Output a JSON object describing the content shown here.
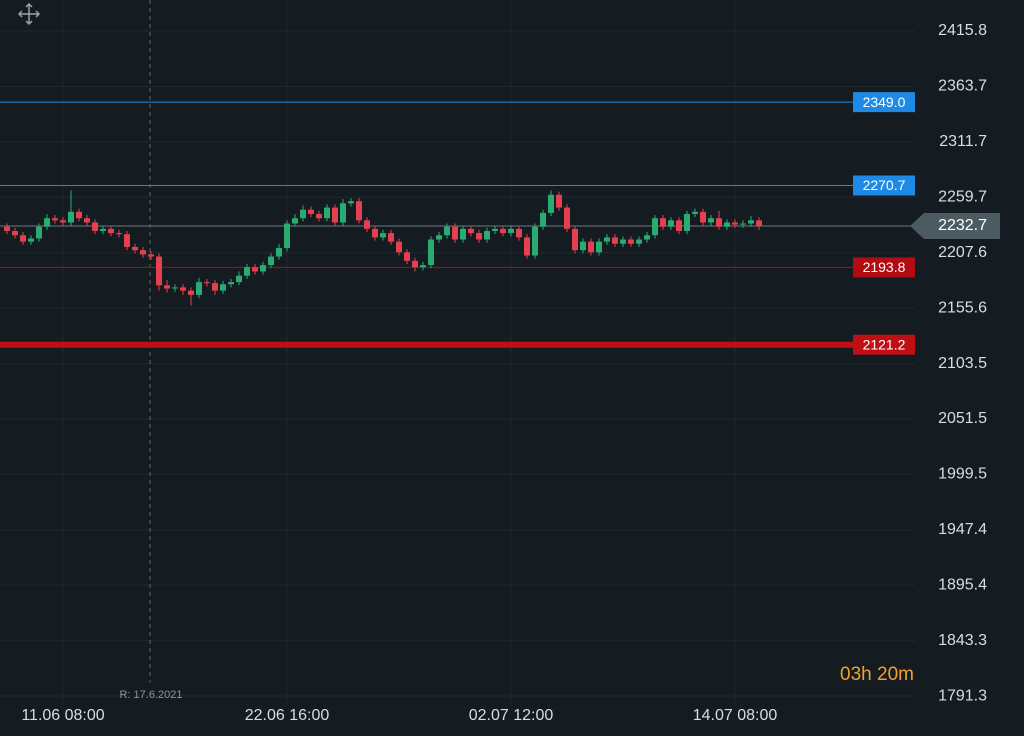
{
  "chart_data": {
    "type": "candlestick",
    "categories": [
      null,
      null,
      null,
      null,
      null,
      null,
      null,
      "11.06 08:00",
      null,
      null,
      null,
      null,
      null,
      null,
      null,
      null,
      null,
      null,
      null,
      null,
      null,
      null,
      null,
      null,
      null,
      null,
      null,
      null,
      null,
      null,
      null,
      null,
      null,
      null,
      null,
      "22.06 16:00",
      null,
      null,
      null,
      null,
      null,
      null,
      null,
      null,
      null,
      null,
      null,
      null,
      null,
      null,
      null,
      null,
      null,
      null,
      null,
      null,
      null,
      null,
      null,
      null,
      null,
      null,
      null,
      "02.07 12:00",
      null,
      null,
      null,
      null,
      null,
      null,
      null,
      null,
      null,
      null,
      null,
      null,
      null,
      null,
      null,
      null,
      null,
      null,
      null,
      null,
      null,
      null,
      null,
      null,
      null,
      null,
      null,
      "14.07 08:00",
      null,
      null,
      null
    ],
    "open": [
      2232,
      2228,
      2224,
      2218,
      2221,
      2232,
      2240,
      2238,
      2236,
      2246,
      2240,
      2236,
      2228,
      2230,
      2226,
      2225,
      2213,
      2210,
      2206,
      2204,
      2177,
      2174,
      2175,
      2172,
      2168,
      2180,
      2179,
      2172,
      2178,
      2180,
      2186,
      2194,
      2190,
      2196,
      2204,
      2212,
      2235,
      2240,
      2248,
      2244,
      2240,
      2250,
      2236,
      2254,
      2256,
      2238,
      2230,
      2222,
      2226,
      2218,
      2208,
      2200,
      2194,
      2196,
      2220,
      2224,
      2232,
      2220,
      2230,
      2226,
      2220,
      2228,
      2230,
      2226,
      2230,
      2222,
      2205,
      2232,
      2245,
      2262,
      2250,
      2230,
      2210,
      2218,
      2208,
      2218,
      2222,
      2216,
      2220,
      2216,
      2220,
      2224,
      2240,
      2232,
      2238,
      2228,
      2244,
      2246,
      2236,
      2240,
      2232,
      2236,
      2234,
      2235,
      2238
    ],
    "high": [
      2235,
      2231,
      2227,
      2224,
      2235,
      2244,
      2243,
      2241,
      2266,
      2249,
      2243,
      2239,
      2233,
      2233,
      2229,
      2228,
      2216,
      2213,
      2209,
      2207,
      2182,
      2178,
      2178,
      2175,
      2184,
      2183,
      2182,
      2181,
      2183,
      2190,
      2197,
      2197,
      2199,
      2207,
      2216,
      2238,
      2244,
      2252,
      2251,
      2247,
      2253,
      2253,
      2258,
      2259,
      2259,
      2241,
      2233,
      2229,
      2229,
      2221,
      2211,
      2203,
      2199,
      2223,
      2227,
      2235,
      2235,
      2233,
      2233,
      2229,
      2231,
      2233,
      2233,
      2233,
      2233,
      2225,
      2235,
      2248,
      2266,
      2265,
      2253,
      2233,
      2221,
      2221,
      2221,
      2225,
      2225,
      2223,
      2223,
      2223,
      2227,
      2243,
      2243,
      2241,
      2241,
      2247,
      2249,
      2249,
      2243,
      2247,
      2239,
      2239,
      2238,
      2242,
      2241
    ],
    "low": [
      2225,
      2221,
      2215,
      2215,
      2218,
      2229,
      2235,
      2233,
      2233,
      2237,
      2233,
      2225,
      2225,
      2223,
      2222,
      2210,
      2207,
      2203,
      2201,
      2172,
      2170,
      2171,
      2168,
      2158,
      2165,
      2176,
      2168,
      2169,
      2175,
      2177,
      2183,
      2187,
      2187,
      2193,
      2201,
      2209,
      2232,
      2237,
      2241,
      2237,
      2237,
      2233,
      2233,
      2251,
      2235,
      2227,
      2219,
      2219,
      2215,
      2205,
      2197,
      2190,
      2191,
      2193,
      2217,
      2221,
      2217,
      2217,
      2223,
      2217,
      2217,
      2225,
      2223,
      2223,
      2219,
      2202,
      2202,
      2229,
      2242,
      2247,
      2227,
      2207,
      2207,
      2205,
      2205,
      2215,
      2213,
      2213,
      2213,
      2213,
      2217,
      2221,
      2229,
      2229,
      2225,
      2225,
      2241,
      2233,
      2233,
      2229,
      2229,
      2231,
      2231,
      2232,
      2229
    ],
    "close": [
      2228,
      2224,
      2218,
      2221,
      2232,
      2240,
      2238,
      2236,
      2246,
      2240,
      2236,
      2228,
      2230,
      2226,
      2225,
      2213,
      2210,
      2206,
      2204,
      2177,
      2174,
      2175,
      2172,
      2168,
      2180,
      2179,
      2172,
      2178,
      2180,
      2186,
      2194,
      2190,
      2196,
      2204,
      2212,
      2235,
      2240,
      2248,
      2244,
      2240,
      2250,
      2236,
      2254,
      2256,
      2238,
      2230,
      2222,
      2226,
      2218,
      2208,
      2200,
      2194,
      2196,
      2220,
      2224,
      2232,
      2220,
      2230,
      2226,
      2220,
      2228,
      2230,
      2226,
      2230,
      2222,
      2205,
      2232,
      2245,
      2262,
      2250,
      2230,
      2210,
      2218,
      2208,
      2218,
      2222,
      2216,
      2220,
      2216,
      2220,
      2224,
      2240,
      2232,
      2238,
      2228,
      2244,
      2246,
      2236,
      2240,
      2232,
      2236,
      2234,
      2235,
      2238,
      2232.7
    ],
    "up_color": "#2bab72",
    "down_color": "#e5404f",
    "ylim": [
      1782.9,
      2444.9
    ],
    "yticks": [
      2415.8,
      2363.7,
      2311.7,
      2259.7,
      2207.6,
      2155.6,
      2103.5,
      2051.5,
      1999.5,
      1947.4,
      1895.4,
      1843.3,
      1791.3
    ],
    "grid": true,
    "levels": [
      {
        "value": 2349.0,
        "label": "2349.0",
        "color": "#1e8ae6",
        "width": 1
      },
      {
        "value": 2270.7,
        "label": "2270.7",
        "color": "#1e8ae6",
        "width": 1
      },
      {
        "value": 2193.8,
        "label": "2193.8",
        "color": "#b30b12",
        "width": 1
      },
      {
        "value": 2121.2,
        "label": "2121.2",
        "color": "#c00f14",
        "width": 6
      }
    ],
    "last_price": 2232.7,
    "last_price_color": "#4c5a62",
    "annotation": "R: 17.6.2021",
    "countdown": "03h 20m"
  }
}
